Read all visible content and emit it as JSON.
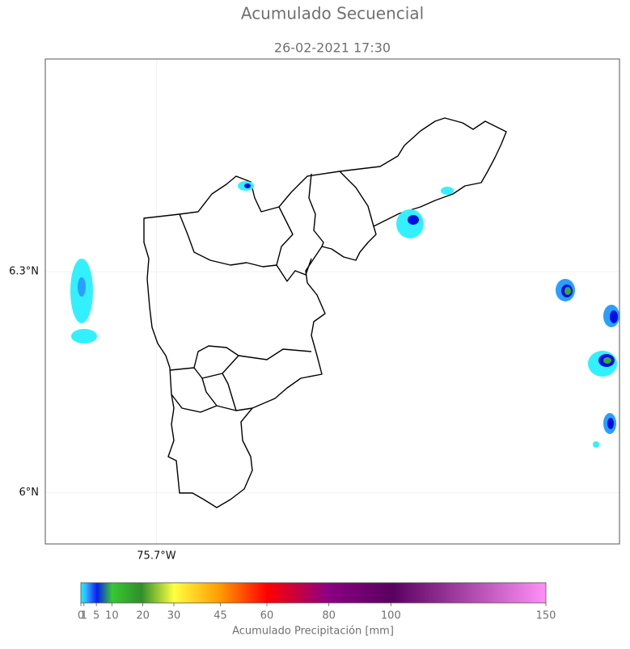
{
  "map": {
    "title": "Acumulado Secuencial",
    "subtitle": "26-02-2021 17:30",
    "ylim": [
      5.93,
      6.589
    ],
    "yticks": [
      {
        "value": 6.3,
        "label": "6.3°N"
      },
      {
        "value": 6,
        "label": "6°N"
      }
    ],
    "xlim": [
      -75.851,
      -75.071
    ],
    "xticks": [
      {
        "value": -75.7,
        "label": "75.7°W"
      }
    ],
    "grid": true,
    "colorbar": {
      "label": "Acumulado Precipitación [mm]",
      "lim": [
        0,
        150
      ],
      "ticks": [
        0,
        1,
        5,
        10,
        20,
        30,
        45,
        60,
        80,
        100,
        150
      ]
    }
  }
}
